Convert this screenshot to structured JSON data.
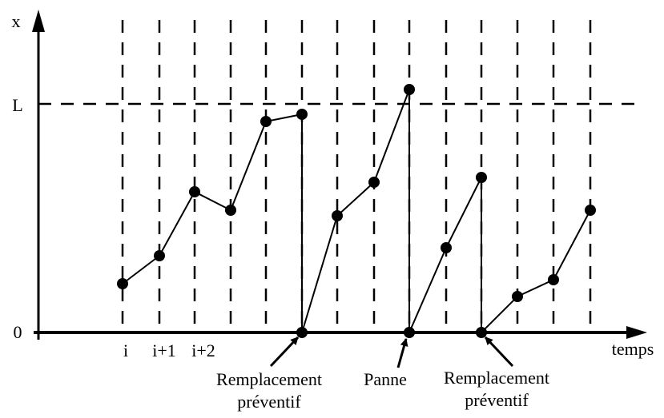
{
  "axes": {
    "y_label": "x",
    "x_label": "temps",
    "threshold": "L",
    "origin": "0"
  },
  "steps": [
    "i",
    "i+1",
    "i+2"
  ],
  "events": [
    {
      "lines": [
        "Remplacement",
        "préventif"
      ]
    },
    {
      "lines": [
        "Panne"
      ]
    },
    {
      "lines": [
        "Remplacement",
        "préventif"
      ]
    }
  ]
}
